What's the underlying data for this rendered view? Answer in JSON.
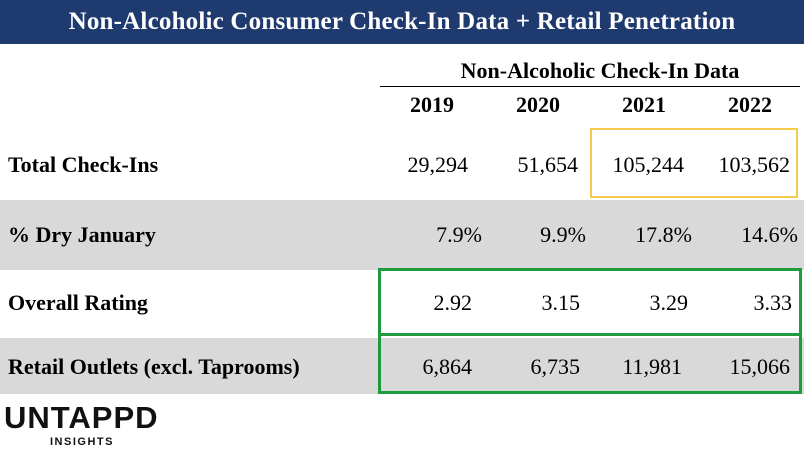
{
  "title": "Non-Alcoholic Consumer Check-In Data + Retail Penetration",
  "chart_data": {
    "type": "table",
    "column_group": "Non-Alcoholic Check-In Data",
    "columns": [
      "2019",
      "2020",
      "2021",
      "2022"
    ],
    "rows": [
      {
        "label": "Total Check-Ins",
        "values": [
          "29,294",
          "51,654",
          "105,244",
          "103,562"
        ]
      },
      {
        "label": "% Dry January",
        "values": [
          "7.9%",
          "9.9%",
          "17.8%",
          "14.6%"
        ]
      },
      {
        "label": "Overall Rating",
        "values": [
          "2.92",
          "3.15",
          "3.29",
          "3.33"
        ]
      },
      {
        "label": "Retail Outlets (excl. Taprooms)",
        "values": [
          "6,864",
          "6,735",
          "11,981",
          "15,066"
        ]
      }
    ]
  },
  "highlights": {
    "yellow": "#f5c94a",
    "green": "#1f9a3c",
    "header_bg": "#1f3a6e",
    "shade": "#d9d9d9"
  },
  "logo": {
    "name": "UNTAPPD",
    "sub": "INSIGHTS"
  }
}
